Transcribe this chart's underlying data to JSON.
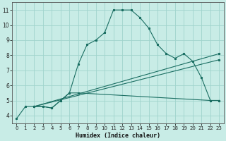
{
  "xlabel": "Humidex (Indice chaleur)",
  "ylabel": "",
  "xlim": [
    -0.5,
    23.5
  ],
  "ylim": [
    3.5,
    11.5
  ],
  "xticks": [
    0,
    1,
    2,
    3,
    4,
    5,
    6,
    7,
    8,
    9,
    10,
    11,
    12,
    13,
    14,
    15,
    16,
    17,
    18,
    19,
    20,
    21,
    22,
    23
  ],
  "yticks": [
    4,
    5,
    6,
    7,
    8,
    9,
    10,
    11
  ],
  "bg_color": "#c8ece6",
  "grid_color": "#a0d4cc",
  "line_color": "#1a6e62",
  "line1_x": [
    0,
    1,
    2,
    3,
    4,
    5,
    6,
    7,
    8,
    9,
    10,
    11,
    12,
    13,
    14,
    15,
    16,
    17,
    18,
    19,
    20,
    21,
    22,
    23
  ],
  "line1_y": [
    3.8,
    4.6,
    4.6,
    4.6,
    4.5,
    5.0,
    5.5,
    7.4,
    8.7,
    9.0,
    9.5,
    11.0,
    11.0,
    11.0,
    10.5,
    9.8,
    8.7,
    8.1,
    7.8,
    8.1,
    7.6,
    6.5,
    5.0,
    5.0
  ],
  "line2_x": [
    2,
    3,
    4,
    5,
    6,
    7,
    22,
    23
  ],
  "line2_y": [
    4.6,
    4.6,
    4.5,
    5.0,
    5.5,
    5.5,
    5.0,
    5.0
  ],
  "line3_x": [
    2,
    23
  ],
  "line3_y": [
    4.6,
    7.7
  ],
  "line4_x": [
    2,
    23
  ],
  "line4_y": [
    4.6,
    8.1
  ]
}
